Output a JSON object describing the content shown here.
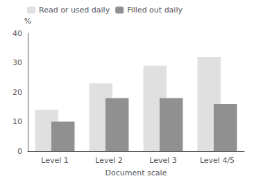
{
  "chart_data": {
    "type": "bar",
    "categories": [
      "Level 1",
      "Level 2",
      "Level 3",
      "Level 4/5"
    ],
    "series": [
      {
        "name": "Read or used daily",
        "color": "#e0e0e0",
        "values": [
          14,
          23,
          29,
          32
        ]
      },
      {
        "name": "Filled out daily",
        "color": "#909090",
        "values": [
          10,
          18,
          18,
          16
        ]
      }
    ],
    "xlabel": "Document scale",
    "ylabel": "%",
    "ylim": [
      0,
      40
    ],
    "yticks": [
      0,
      10,
      20,
      30,
      40
    ],
    "grid": false,
    "legend": "upper left"
  }
}
